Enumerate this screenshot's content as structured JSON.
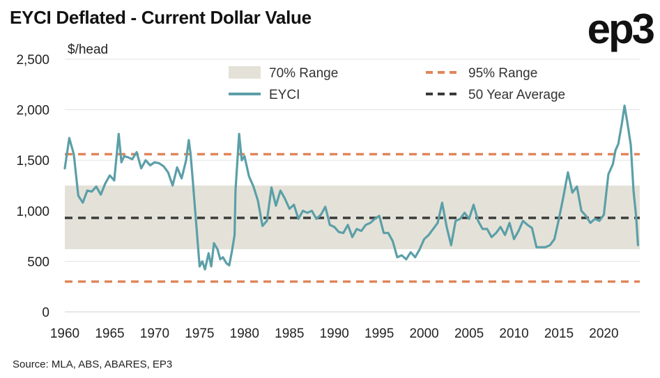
{
  "header": {
    "title": "EYCI Deflated - Current Dollar Value",
    "logo_text": "ep3",
    "source": "Source: MLA, ABS, ABARES, EP3"
  },
  "chart_data": {
    "type": "line",
    "title": "EYCI Deflated - Current Dollar Value",
    "ylabel": "$/head",
    "xlabel": "",
    "xlim": [
      1960,
      2024
    ],
    "ylim": [
      0,
      2500
    ],
    "xticks": [
      1960,
      1965,
      1970,
      1975,
      1980,
      1985,
      1990,
      1995,
      2000,
      2005,
      2010,
      2015,
      2020
    ],
    "yticks": [
      0,
      500,
      1000,
      1500,
      2000,
      2500
    ],
    "ytick_labels": [
      "0",
      "500",
      "1,000",
      "1,500",
      "2,000",
      "2,500"
    ],
    "grid": "horizontal",
    "legend_placement": "top",
    "legend": [
      "70% Range",
      "95% Range",
      "EYCI",
      "50 Year Average"
    ],
    "colors": {
      "eyci": "#5b9fa8",
      "range95": "#e0855a",
      "average": "#3a3a3a",
      "range70": "#e4e2d8",
      "grid": "#e2e2e2"
    },
    "range_70": [
      620,
      1250
    ],
    "range_95": [
      300,
      1560
    ],
    "average_50yr": 930,
    "series": [
      {
        "name": "EYCI",
        "x": [
          1960,
          1960.5,
          1961,
          1961.5,
          1962,
          1962.5,
          1963,
          1963.5,
          1964,
          1964.5,
          1965,
          1965.5,
          1966,
          1966.3,
          1966.6,
          1967,
          1967.5,
          1968,
          1968.5,
          1969,
          1969.5,
          1970,
          1970.5,
          1971,
          1971.5,
          1972,
          1972.5,
          1973,
          1973.5,
          1973.8,
          1974,
          1974.3,
          1974.6,
          1975,
          1975.3,
          1975.6,
          1976,
          1976.3,
          1976.6,
          1977,
          1977.3,
          1977.6,
          1978,
          1978.3,
          1978.6,
          1978.9,
          1979,
          1979.4,
          1979.7,
          1980,
          1980.5,
          1981,
          1981.5,
          1982,
          1982.5,
          1983,
          1983.5,
          1984,
          1984.5,
          1985,
          1985.5,
          1986,
          1986.5,
          1987,
          1987.5,
          1988,
          1988.5,
          1989,
          1989.5,
          1990,
          1990.5,
          1991,
          1991.5,
          1992,
          1992.5,
          1993,
          1993.5,
          1994,
          1994.5,
          1995,
          1995.5,
          1996,
          1996.5,
          1997,
          1997.5,
          1998,
          1998.5,
          1999,
          1999.5,
          2000,
          2000.5,
          2001,
          2001.5,
          2002,
          2002.5,
          2003,
          2003.5,
          2004,
          2004.5,
          2005,
          2005.5,
          2006,
          2006.5,
          2007,
          2007.5,
          2008,
          2008.5,
          2009,
          2009.5,
          2010,
          2010.5,
          2011,
          2011.5,
          2012,
          2012.5,
          2013,
          2013.5,
          2014,
          2014.5,
          2015,
          2015.5,
          2016,
          2016.5,
          2017,
          2017.5,
          2018,
          2018.5,
          2019,
          2019.5,
          2020,
          2020.5,
          2021,
          2021.3,
          2021.6,
          2022,
          2022.3,
          2022.6,
          2023,
          2023.3,
          2023.6,
          2023.8
        ],
        "values": [
          1420,
          1720,
          1560,
          1150,
          1080,
          1200,
          1190,
          1240,
          1160,
          1270,
          1350,
          1300,
          1760,
          1480,
          1540,
          1530,
          1510,
          1580,
          1420,
          1500,
          1450,
          1480,
          1470,
          1440,
          1380,
          1250,
          1430,
          1320,
          1500,
          1700,
          1560,
          1240,
          900,
          450,
          500,
          420,
          580,
          450,
          680,
          620,
          520,
          540,
          480,
          460,
          600,
          760,
          1200,
          1760,
          1500,
          1540,
          1340,
          1240,
          1100,
          850,
          900,
          1230,
          1050,
          1200,
          1120,
          1020,
          1060,
          920,
          1000,
          980,
          1000,
          920,
          960,
          1040,
          860,
          840,
          790,
          780,
          860,
          740,
          820,
          800,
          860,
          880,
          920,
          950,
          780,
          780,
          700,
          540,
          560,
          520,
          590,
          540,
          620,
          720,
          760,
          820,
          880,
          1080,
          840,
          660,
          900,
          920,
          980,
          920,
          1060,
          900,
          820,
          820,
          740,
          780,
          840,
          760,
          880,
          720,
          800,
          900,
          860,
          830,
          640,
          640,
          640,
          660,
          720,
          920,
          1140,
          1380,
          1180,
          1240,
          1000,
          950,
          880,
          920,
          900,
          960,
          1360,
          1460,
          1600,
          1660,
          1860,
          2040,
          1880,
          1650,
          1200,
          940,
          660
        ]
      }
    ]
  }
}
